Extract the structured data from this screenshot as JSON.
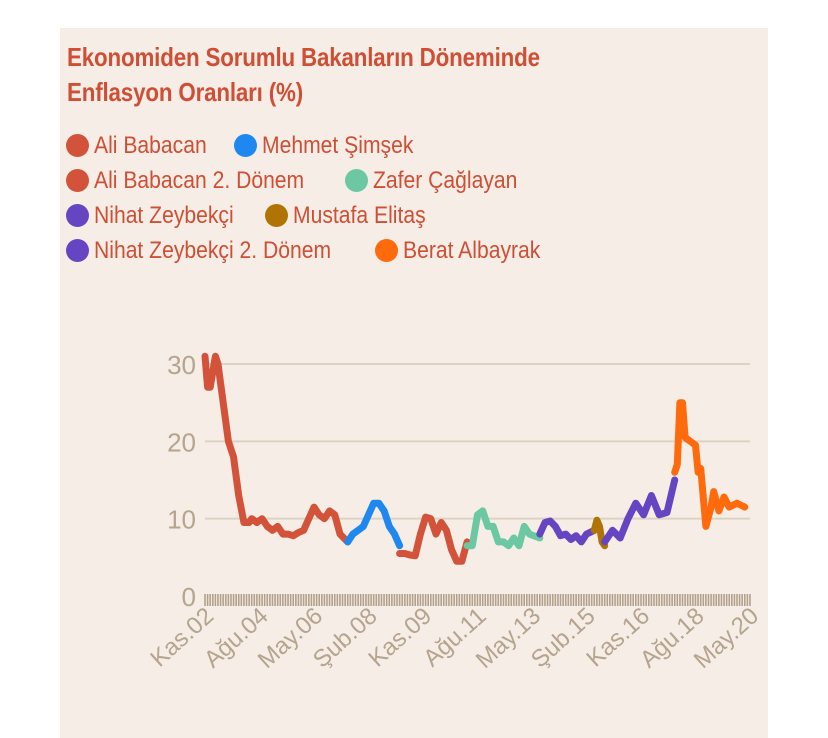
{
  "chart_data": {
    "type": "line",
    "title": "Ekonomiden Sorumlu Bakanların Döneminde Enflasyon Oranları (%)",
    "xlabel": "",
    "ylabel": "",
    "x_unit": "months since Kas.02",
    "ylim": [
      0,
      30
    ],
    "yticks": [
      0,
      10,
      20,
      30
    ],
    "grid": true,
    "legend_position": "top-left",
    "xticks": [
      {
        "m": 0,
        "label": "Kas.02"
      },
      {
        "m": 21,
        "label": "Ağu.04"
      },
      {
        "m": 42,
        "label": "May.06"
      },
      {
        "m": 63,
        "label": "Şub.08"
      },
      {
        "m": 84,
        "label": "Kas.09"
      },
      {
        "m": 105,
        "label": "Ağu.11"
      },
      {
        "m": 126,
        "label": "May.13"
      },
      {
        "m": 147,
        "label": "Şub.15"
      },
      {
        "m": 168,
        "label": "Kas.16"
      },
      {
        "m": 189,
        "label": "Ağu.18"
      },
      {
        "m": 210,
        "label": "May.20"
      }
    ],
    "series": [
      {
        "name": "Ali Babacan",
        "color": "#d2533a",
        "points": [
          [
            0,
            31
          ],
          [
            1,
            27
          ],
          [
            2,
            27
          ],
          [
            3,
            29
          ],
          [
            4,
            31
          ],
          [
            5,
            30
          ],
          [
            7,
            25
          ],
          [
            9,
            20
          ],
          [
            11,
            18
          ],
          [
            13,
            13
          ],
          [
            15,
            9.5
          ],
          [
            17,
            9.5
          ],
          [
            18,
            10
          ],
          [
            20,
            9.5
          ],
          [
            22,
            10
          ],
          [
            24,
            9
          ],
          [
            26,
            8.5
          ],
          [
            28,
            9
          ],
          [
            30,
            8
          ],
          [
            32,
            8
          ],
          [
            34,
            7.8
          ],
          [
            36,
            8.2
          ],
          [
            38,
            8.5
          ],
          [
            40,
            10
          ],
          [
            42,
            11.5
          ],
          [
            44,
            10.5
          ],
          [
            46,
            10
          ],
          [
            48,
            11
          ],
          [
            50,
            10.5
          ],
          [
            52,
            8
          ],
          [
            55,
            7
          ]
        ]
      },
      {
        "name": "Mehmet Şimşek",
        "color": "#1e88f0",
        "points": [
          [
            55,
            7
          ],
          [
            57,
            8
          ],
          [
            59,
            8.5
          ],
          [
            61,
            9
          ],
          [
            63,
            10.5
          ],
          [
            65,
            12
          ],
          [
            67,
            12
          ],
          [
            69,
            11
          ],
          [
            71,
            9
          ],
          [
            73,
            8
          ],
          [
            75,
            6.5
          ]
        ]
      },
      {
        "name": "Ali Babacan 2. Dönem",
        "color": "#d2533a",
        "points": [
          [
            75,
            5.5
          ],
          [
            77,
            5.5
          ],
          [
            79,
            5.3
          ],
          [
            81,
            5.2
          ],
          [
            83,
            8
          ],
          [
            85,
            10.2
          ],
          [
            87,
            10
          ],
          [
            89,
            8
          ],
          [
            91,
            9.5
          ],
          [
            93,
            8.5
          ],
          [
            95,
            6
          ],
          [
            97,
            4.5
          ],
          [
            99,
            4.5
          ],
          [
            101,
            7
          ]
        ]
      },
      {
        "name": "Zafer Çağlayan",
        "color": "#6cc7a3",
        "points": [
          [
            101,
            6.5
          ],
          [
            103,
            6.5
          ],
          [
            105,
            10.5
          ],
          [
            107,
            11
          ],
          [
            109,
            9
          ],
          [
            111,
            9
          ],
          [
            113,
            7
          ],
          [
            115,
            7
          ],
          [
            117,
            6.5
          ],
          [
            119,
            7.5
          ],
          [
            121,
            6.5
          ],
          [
            123,
            9
          ],
          [
            125,
            8
          ],
          [
            129,
            7.5
          ]
        ]
      },
      {
        "name": "Nihat Zeybekçi",
        "color": "#6645c3",
        "points": [
          [
            129,
            8
          ],
          [
            131,
            9.5
          ],
          [
            133,
            9.7
          ],
          [
            135,
            9
          ],
          [
            137,
            7.8
          ],
          [
            139,
            8
          ],
          [
            141,
            7.3
          ],
          [
            143,
            7.8
          ],
          [
            145,
            7
          ],
          [
            147,
            8
          ],
          [
            150,
            8.5
          ]
        ]
      },
      {
        "name": "Mustafa Elitaş",
        "color": "#b07404",
        "points": [
          [
            150,
            8.5
          ],
          [
            151,
            9.8
          ],
          [
            152,
            9
          ],
          [
            153,
            7
          ],
          [
            154,
            6.5
          ]
        ]
      },
      {
        "name": "Nihat Zeybekçi 2. Dönem",
        "color": "#6645c3",
        "points": [
          [
            154,
            7
          ],
          [
            157,
            8.5
          ],
          [
            160,
            7.5
          ],
          [
            163,
            10
          ],
          [
            166,
            12
          ],
          [
            169,
            10.5
          ],
          [
            172,
            13
          ],
          [
            175,
            10.5
          ],
          [
            178,
            10.8
          ],
          [
            181,
            15
          ]
        ]
      },
      {
        "name": "Berat Albayrak",
        "color": "#ff6a0c",
        "points": [
          [
            181,
            16
          ],
          [
            182,
            17
          ],
          [
            183,
            25
          ],
          [
            184,
            25
          ],
          [
            185,
            20.5
          ],
          [
            187,
            20
          ],
          [
            189,
            19.5
          ],
          [
            190,
            16
          ],
          [
            191,
            16.5
          ],
          [
            193,
            9
          ],
          [
            195,
            11.5
          ],
          [
            196,
            13.5
          ],
          [
            198,
            11
          ],
          [
            200,
            12.8
          ],
          [
            202,
            11.5
          ],
          [
            205,
            12
          ],
          [
            208,
            11.5
          ]
        ]
      }
    ]
  },
  "colors": {
    "title": "#cf4f35",
    "axis_text": "#b5a48e",
    "grid": "#ddd2c4",
    "panel_bg": "#f5ede6"
  }
}
